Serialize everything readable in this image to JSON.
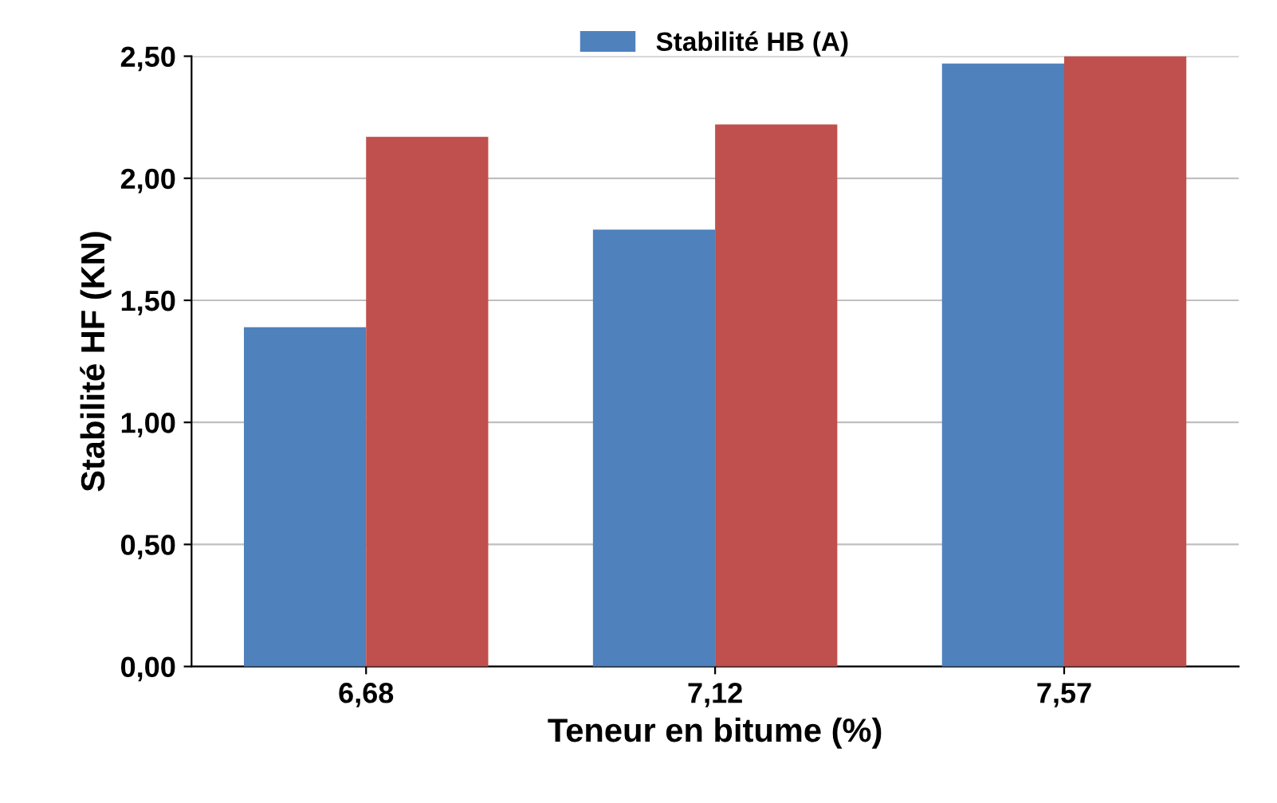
{
  "chart_data": {
    "type": "bar",
    "xlabel": "Teneur en bitume (%)",
    "ylabel": "Stabilité HF (KN)",
    "categories": [
      "6,68",
      "7,12",
      "7,57"
    ],
    "series": [
      {
        "name": "Stabilité HB (A)",
        "color": "#4f81bd",
        "values": [
          1.39,
          1.79,
          2.47
        ]
      },
      {
        "color": "#c0504d",
        "values": [
          2.17,
          2.22,
          2.5
        ]
      }
    ],
    "ylim": [
      0,
      2.5
    ],
    "yticks": [
      {
        "value": 0,
        "label": "0,00"
      },
      {
        "value": 0.5,
        "label": "0,50"
      },
      {
        "value": 1,
        "label": "1,00"
      },
      {
        "value": 1.5,
        "label": "1,50"
      },
      {
        "value": 2,
        "label": "2,00"
      },
      {
        "value": 2.5,
        "label": "2,50"
      }
    ],
    "grid": "y",
    "legend": "top"
  }
}
